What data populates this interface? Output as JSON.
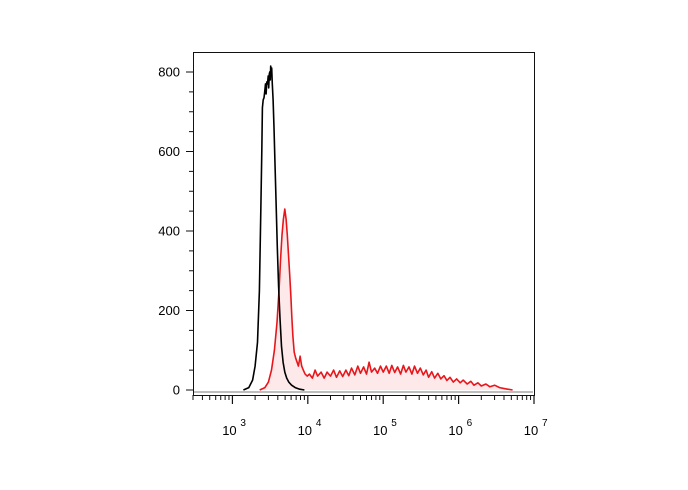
{
  "chart_data": {
    "type": "histogram",
    "title": "",
    "xlabel": "",
    "ylabel": "",
    "x_scale": "log",
    "xlim": [
      300,
      10000000
    ],
    "ylim": [
      0,
      840
    ],
    "grid": false,
    "y_ticks": [
      {
        "value": 0,
        "label": "0"
      },
      {
        "value": 200,
        "label": "200"
      },
      {
        "value": 400,
        "label": "400"
      },
      {
        "value": 600,
        "label": "600"
      },
      {
        "value": 800,
        "label": "800"
      }
    ],
    "x_ticks": [
      {
        "value": 1000,
        "base": "10",
        "exp": "3"
      },
      {
        "value": 10000,
        "base": "10",
        "exp": "4"
      },
      {
        "value": 100000,
        "base": "10",
        "exp": "5"
      },
      {
        "value": 1000000,
        "base": "10",
        "exp": "6"
      },
      {
        "value": 10000000,
        "base": "10",
        "exp": "7"
      }
    ],
    "series": [
      {
        "color": "#000000",
        "fill": "none",
        "points": [
          [
            1400,
            0
          ],
          [
            1650,
            6
          ],
          [
            1850,
            25
          ],
          [
            2000,
            60
          ],
          [
            2150,
            120
          ],
          [
            2280,
            250
          ],
          [
            2380,
            450
          ],
          [
            2450,
            600
          ],
          [
            2500,
            710
          ],
          [
            2560,
            730
          ],
          [
            2620,
            735
          ],
          [
            2680,
            750
          ],
          [
            2750,
            770
          ],
          [
            2800,
            745
          ],
          [
            2860,
            775
          ],
          [
            2920,
            770
          ],
          [
            2980,
            790
          ],
          [
            3030,
            760
          ],
          [
            3080,
            795
          ],
          [
            3130,
            800
          ],
          [
            3180,
            780
          ],
          [
            3220,
            815
          ],
          [
            3270,
            790
          ],
          [
            3320,
            810
          ],
          [
            3380,
            770
          ],
          [
            3460,
            730
          ],
          [
            3560,
            660
          ],
          [
            3680,
            560
          ],
          [
            3800,
            470
          ],
          [
            3940,
            360
          ],
          [
            4100,
            260
          ],
          [
            4280,
            180
          ],
          [
            4480,
            110
          ],
          [
            4700,
            70
          ],
          [
            4950,
            45
          ],
          [
            5250,
            30
          ],
          [
            5600,
            20
          ],
          [
            6100,
            12
          ],
          [
            6800,
            6
          ],
          [
            7800,
            2
          ],
          [
            9000,
            0
          ]
        ]
      },
      {
        "color": "#e8161b",
        "fill": "#fde8ea",
        "points": [
          [
            2300,
            0
          ],
          [
            2700,
            6
          ],
          [
            3000,
            20
          ],
          [
            3300,
            50
          ],
          [
            3600,
            100
          ],
          [
            3900,
            170
          ],
          [
            4150,
            250
          ],
          [
            4350,
            330
          ],
          [
            4550,
            390
          ],
          [
            4750,
            430
          ],
          [
            4950,
            455
          ],
          [
            5150,
            430
          ],
          [
            5350,
            390
          ],
          [
            5550,
            340
          ],
          [
            5750,
            290
          ],
          [
            5950,
            240
          ],
          [
            6150,
            180
          ],
          [
            6350,
            135
          ],
          [
            6600,
            95
          ],
          [
            6900,
            80
          ],
          [
            7200,
            70
          ],
          [
            7500,
            60
          ],
          [
            7900,
            85
          ],
          [
            8300,
            60
          ],
          [
            8700,
            50
          ],
          [
            9200,
            40
          ],
          [
            9800,
            35
          ],
          [
            10500,
            40
          ],
          [
            11500,
            30
          ],
          [
            12500,
            50
          ],
          [
            13500,
            35
          ],
          [
            15000,
            45
          ],
          [
            16500,
            30
          ],
          [
            18000,
            45
          ],
          [
            20000,
            35
          ],
          [
            22000,
            50
          ],
          [
            24000,
            32
          ],
          [
            26500,
            48
          ],
          [
            29000,
            34
          ],
          [
            32000,
            50
          ],
          [
            35000,
            36
          ],
          [
            38000,
            55
          ],
          [
            42000,
            38
          ],
          [
            46000,
            60
          ],
          [
            50000,
            42
          ],
          [
            55000,
            58
          ],
          [
            60000,
            40
          ],
          [
            65000,
            70
          ],
          [
            70000,
            45
          ],
          [
            77000,
            55
          ],
          [
            84000,
            42
          ],
          [
            92000,
            60
          ],
          [
            100000,
            45
          ],
          [
            110000,
            60
          ],
          [
            120000,
            42
          ],
          [
            130000,
            62
          ],
          [
            142000,
            44
          ],
          [
            155000,
            58
          ],
          [
            170000,
            40
          ],
          [
            185000,
            62
          ],
          [
            200000,
            45
          ],
          [
            220000,
            58
          ],
          [
            240000,
            40
          ],
          [
            260000,
            60
          ],
          [
            285000,
            42
          ],
          [
            310000,
            55
          ],
          [
            340000,
            38
          ],
          [
            370000,
            50
          ],
          [
            400000,
            32
          ],
          [
            440000,
            46
          ],
          [
            480000,
            30
          ],
          [
            530000,
            42
          ],
          [
            580000,
            28
          ],
          [
            640000,
            36
          ],
          [
            700000,
            24
          ],
          [
            770000,
            32
          ],
          [
            850000,
            20
          ],
          [
            940000,
            28
          ],
          [
            1050000,
            18
          ],
          [
            1150000,
            25
          ],
          [
            1300000,
            15
          ],
          [
            1450000,
            22
          ],
          [
            1600000,
            12
          ],
          [
            1800000,
            18
          ],
          [
            2000000,
            10
          ],
          [
            2300000,
            15
          ],
          [
            2600000,
            8
          ],
          [
            3000000,
            12
          ],
          [
            3500000,
            6
          ],
          [
            4200000,
            3
          ],
          [
            5200000,
            0
          ]
        ]
      }
    ]
  }
}
